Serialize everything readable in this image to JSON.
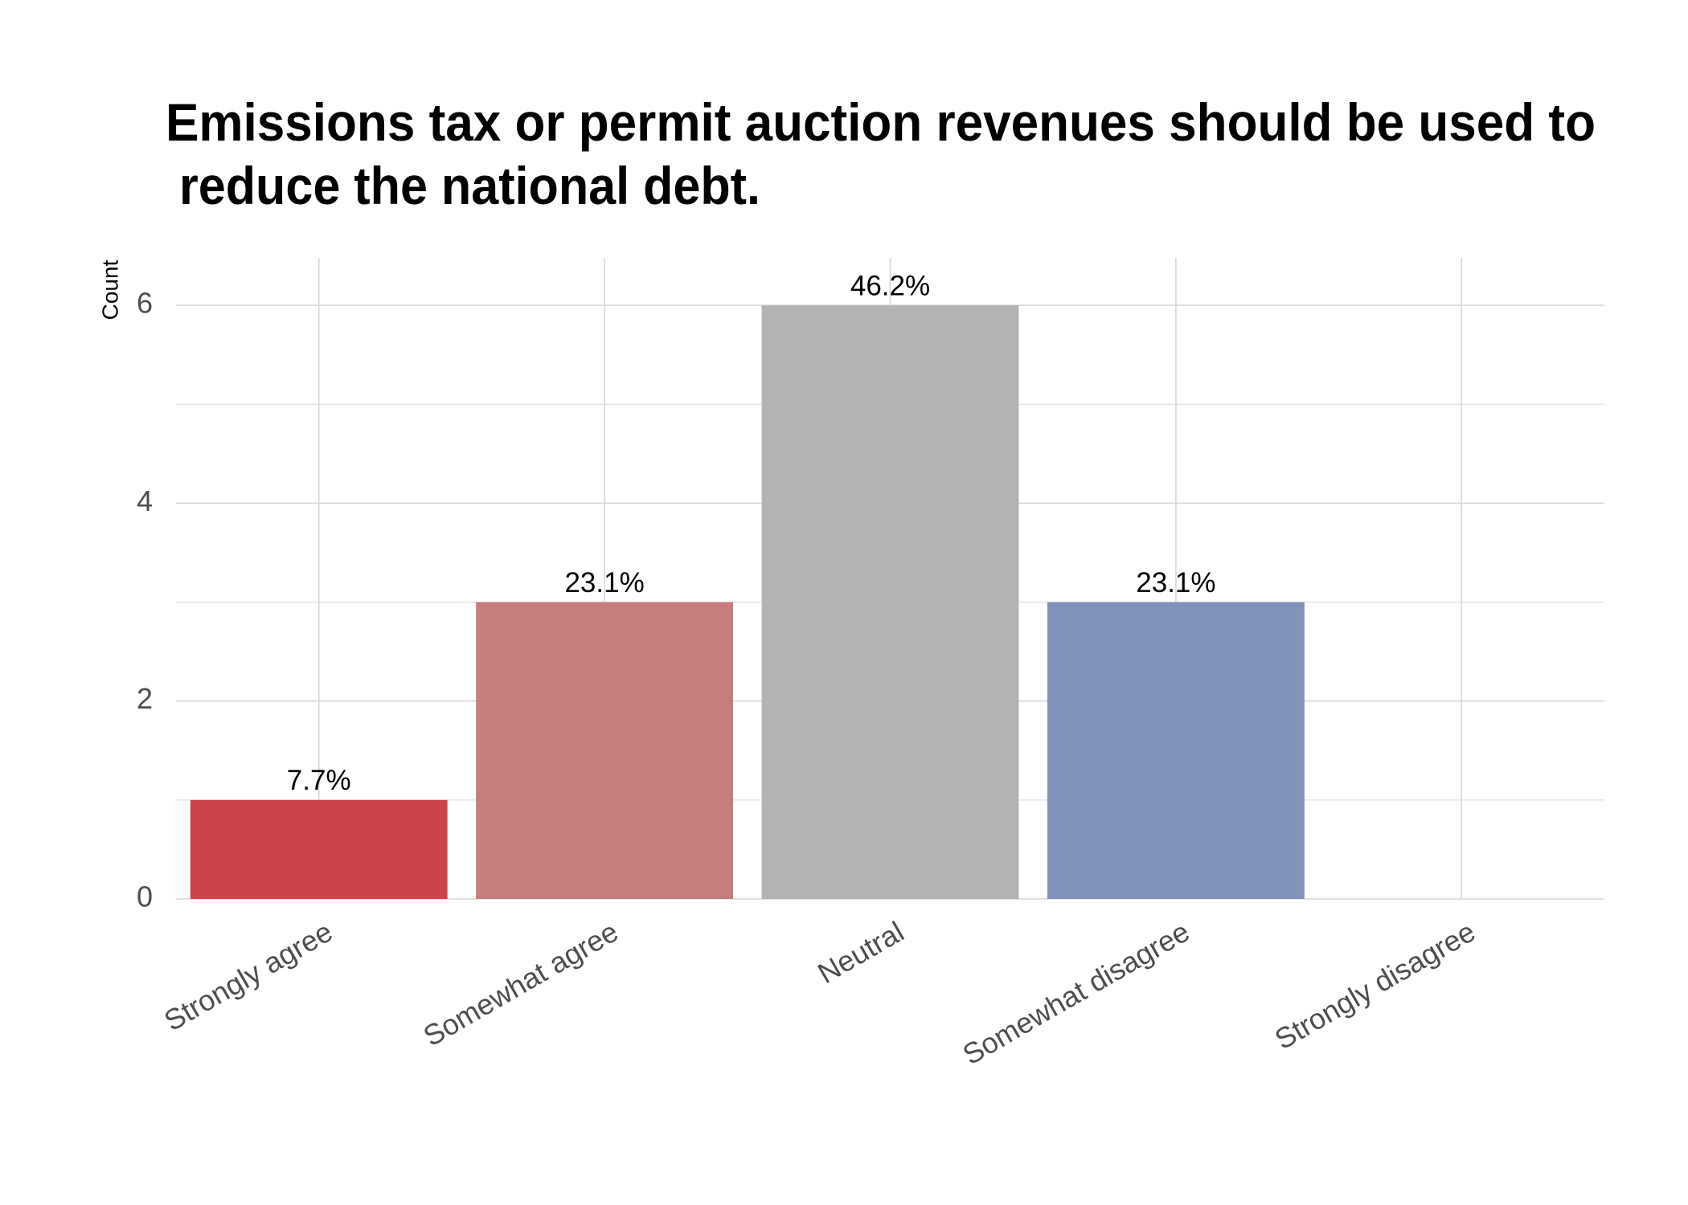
{
  "chart_data": {
    "type": "bar",
    "title": "Emissions tax or permit auction revenues should be used to\n reduce the national debt.",
    "y_label": "Count",
    "categories": [
      "Strongly agree",
      "Somewhat agree",
      "Neutral",
      "Somewhat disagree",
      "Strongly disagree"
    ],
    "values": [
      1,
      3,
      6,
      3,
      0
    ],
    "value_labels": [
      "7.7%",
      "23.1%",
      "46.2%",
      "23.1%",
      null
    ],
    "colors": [
      "#cc444a",
      "#c67e7c",
      "#b3b3b3",
      "#8093bb",
      "#4a6fa5"
    ],
    "ylim": [
      0,
      6.48
    ],
    "yticks": [
      0,
      2,
      4,
      6
    ],
    "grid": true
  }
}
